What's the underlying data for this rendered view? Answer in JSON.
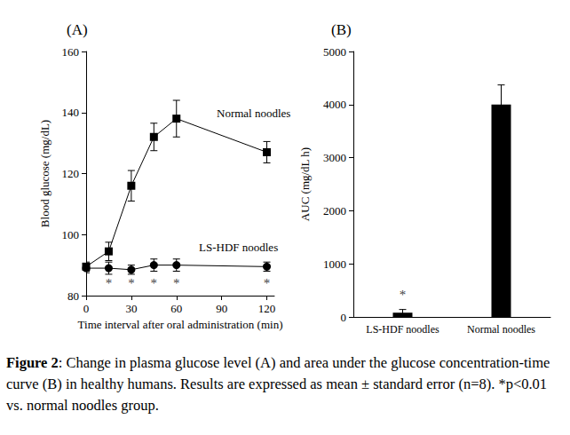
{
  "chart_data": [
    {
      "type": "line",
      "title": "(A)",
      "x_label": "Time interval after oral administration (min)",
      "y_label": "Blood glucose (mg/dL)",
      "x": [
        0,
        15,
        30,
        45,
        60,
        120
      ],
      "series": [
        {
          "name": "Normal noodles",
          "color": "#000000",
          "marker": "square",
          "line_style": "solid",
          "values": [
            89.5,
            94.5,
            116,
            132,
            138,
            127
          ],
          "errors": [
            1.5,
            3,
            5,
            4.5,
            6,
            3.5
          ]
        },
        {
          "name": "LS-HDF noodles",
          "color": "#000000",
          "marker": "circle",
          "line_style": "solid",
          "values": [
            89,
            89,
            88.5,
            90,
            90,
            89.5
          ],
          "errors": [
            1.5,
            2,
            1.5,
            2,
            2,
            1.5
          ]
        }
      ],
      "xlim": [
        0,
        125
      ],
      "xticks": [
        0,
        30,
        60,
        90,
        120
      ],
      "ylim": [
        80,
        160
      ],
      "yticks": [
        80,
        100,
        120,
        140,
        160
      ],
      "grid": false,
      "annotations": [
        {
          "x": 15,
          "y": 84,
          "text": "*"
        },
        {
          "x": 30,
          "y": 84,
          "text": "*"
        },
        {
          "x": 45,
          "y": 84,
          "text": "*"
        },
        {
          "x": 60,
          "y": 84,
          "text": "*"
        },
        {
          "x": 120,
          "y": 84,
          "text": "*"
        }
      ]
    },
    {
      "type": "bar",
      "title": "(B)",
      "y_label": "AUC (mg/dL h)",
      "categories": [
        "LS-HDF noodles",
        "Normal noodles"
      ],
      "values": [
        80,
        4000
      ],
      "errors": [
        60,
        370
      ],
      "color": "#000000",
      "ylim": [
        0,
        5000
      ],
      "yticks": [
        0,
        1000,
        2000,
        3000,
        4000,
        5000
      ],
      "grid": false,
      "annotations": [
        {
          "category": "LS-HDF noodles",
          "y": 420,
          "text": "*"
        }
      ]
    }
  ],
  "caption": "Figure 2: Change in plasma glucose level (A) and area under the glucose concentration-time curve (B) in healthy humans. Results are expressed as mean ± standard error (n=8). *p<0.01 vs. normal noodles group."
}
